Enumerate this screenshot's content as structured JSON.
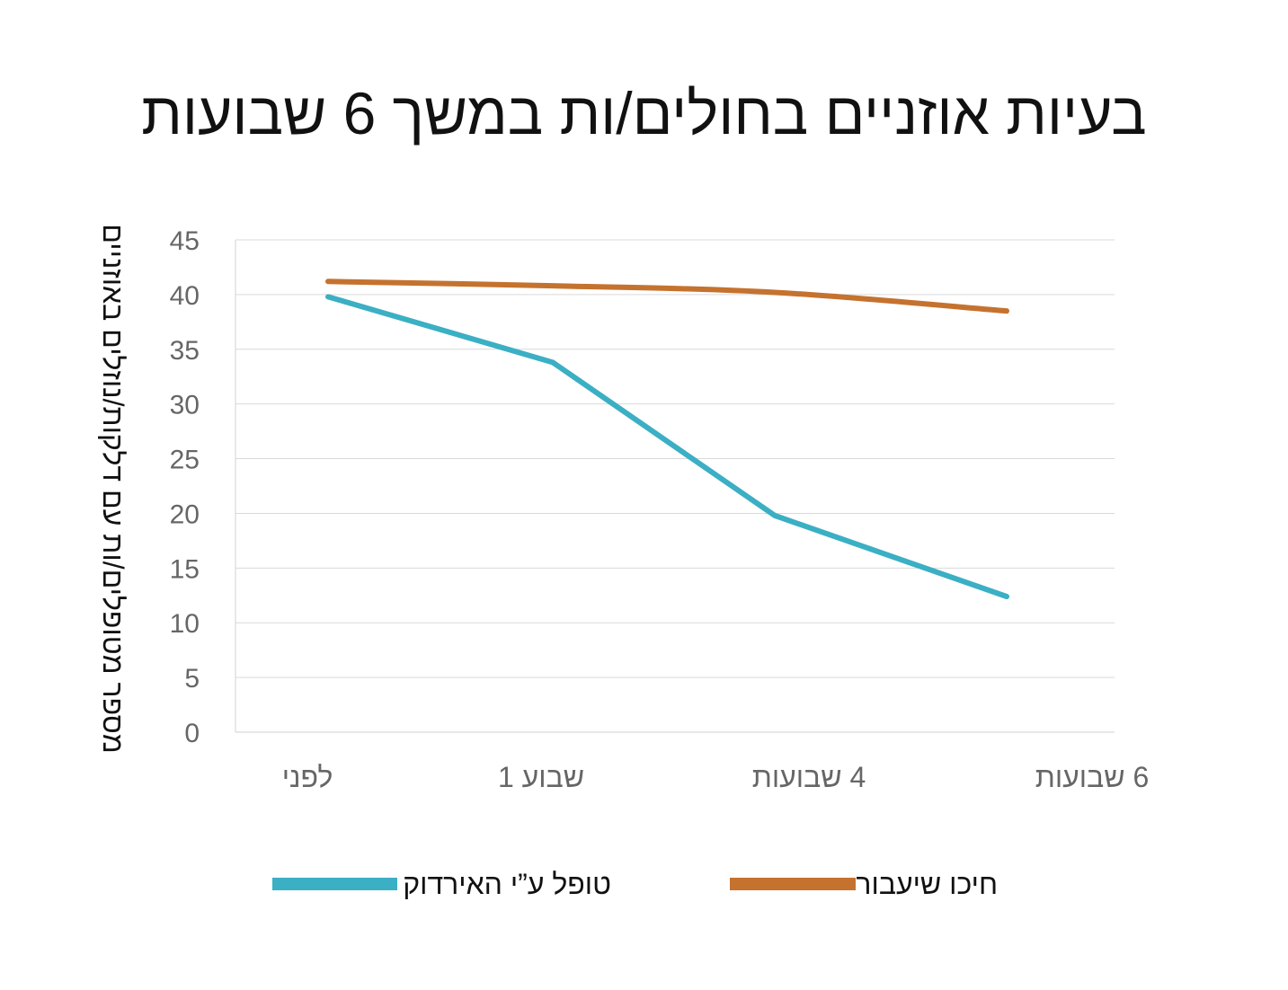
{
  "chart_data": {
    "type": "line",
    "title": "בעיות אוזניים בחולים/ות במשך 6 שבועות",
    "ylabel": "מספר מטופלים/ות  עם דלקות/נוזלים באוזניים",
    "xlabel": "",
    "categories": [
      "לפני",
      "שבוע 1",
      "4  שבועות",
      "6 שבועות"
    ],
    "ylim": [
      0,
      45
    ],
    "yticks": [
      0,
      5,
      10,
      15,
      20,
      25,
      30,
      35,
      40,
      45
    ],
    "grid": true,
    "legend_position": "bottom",
    "series": [
      {
        "name": "טופל ע”י האירדוק",
        "color": "#3BAFC4",
        "values": [
          39.8,
          33.8,
          19.8,
          12.4
        ]
      },
      {
        "name": "חיכו שיעבור",
        "color": "#C5722F",
        "values": [
          41.2,
          40.8,
          40.2,
          38.5
        ]
      }
    ]
  }
}
